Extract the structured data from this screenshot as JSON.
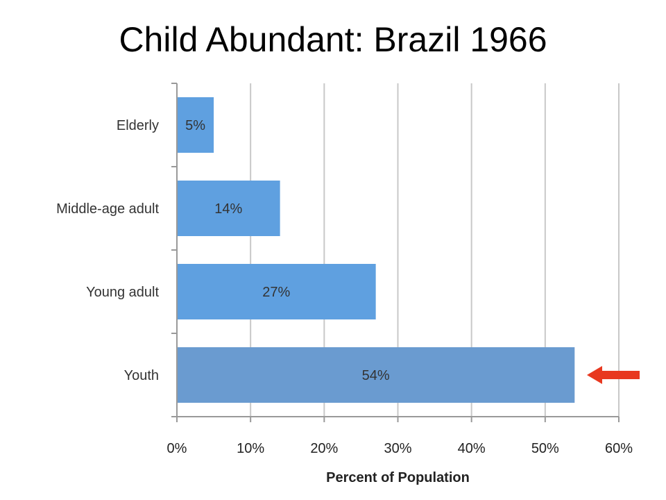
{
  "chart_data": {
    "type": "bar",
    "orientation": "horizontal",
    "title": "Child Abundant: Brazil 1966",
    "xlabel": "Percent of Population",
    "ylabel": "",
    "categories": [
      "Elderly",
      "Middle-age adult",
      "Young adult",
      "Youth"
    ],
    "values": [
      5,
      14,
      27,
      54
    ],
    "data_labels": [
      "5%",
      "14%",
      "27%",
      "54%"
    ],
    "xlim": [
      0,
      60
    ],
    "xticks": [
      0,
      10,
      20,
      30,
      40,
      50,
      60
    ],
    "xtick_labels": [
      "0%",
      "10%",
      "20%",
      "30%",
      "40%",
      "50%",
      "60%"
    ],
    "grid": "vertical",
    "legend": "none",
    "highlight": {
      "category": "Youth",
      "marker": "arrow",
      "color": "#e8381f"
    },
    "colors": {
      "bar": "#5fa0e0",
      "bar_highlight": "#6a9bd0",
      "grid": "#c8c8c8",
      "axis": "#999999"
    }
  }
}
